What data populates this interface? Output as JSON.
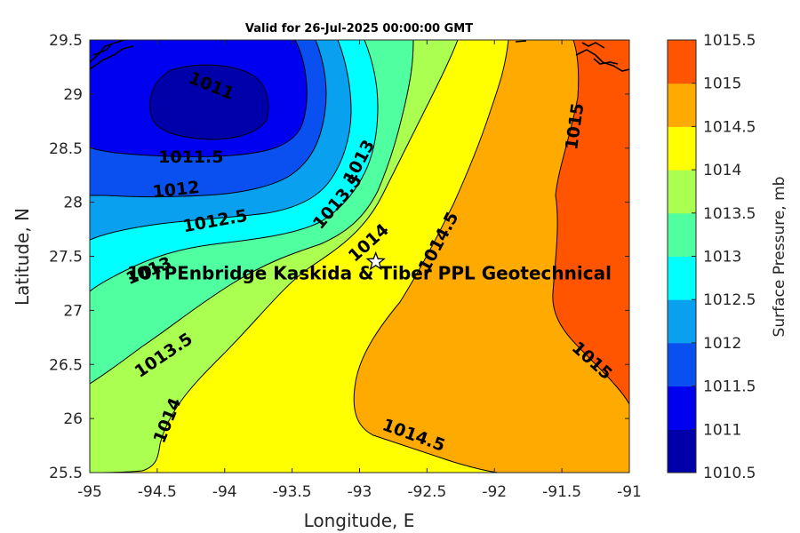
{
  "chart_data": {
    "type": "contour",
    "title": "Valid for 26-Jul-2025 00:00:00 GMT",
    "xlabel": "Longitude, E",
    "ylabel": "Latitude, N",
    "xlim": [
      -95,
      -91
    ],
    "ylim": [
      25.5,
      29.5
    ],
    "xticks": [
      "-95",
      "-94.5",
      "-94",
      "-93.5",
      "-93",
      "-92.5",
      "-92",
      "-91.5",
      "-91"
    ],
    "yticks": [
      "25.5",
      "26",
      "26.5",
      "27",
      "27.5",
      "28",
      "28.5",
      "29",
      "29.5"
    ],
    "colorbar": {
      "label": "Surface Pressure, mb",
      "levels": [
        1010.5,
        1011,
        1011.5,
        1012,
        1012.5,
        1013,
        1013.5,
        1014,
        1014.5,
        1015,
        1015.5
      ],
      "tick_labels": [
        "1010.5",
        "1011",
        "1011.5",
        "1012",
        "1012.5",
        "1013",
        "1013.5",
        "1014",
        "1014.5",
        "1015",
        "1015.5"
      ],
      "colors": [
        "#0000AA",
        "#0000F0",
        "#0A50F0",
        "#0AA0F0",
        "#00FFFF",
        "#50FFA0",
        "#AAFF50",
        "#FFFF00",
        "#FFAA00",
        "#FF5500",
        "#FF0000"
      ]
    },
    "contour_labels": [
      {
        "text": "1011",
        "lon": -94.1,
        "lat": 29.07,
        "angle": 22
      },
      {
        "text": "1011.5",
        "lon": -94.25,
        "lat": 28.41,
        "angle": 0
      },
      {
        "text": "1012",
        "lon": -94.36,
        "lat": 28.11,
        "angle": -6
      },
      {
        "text": "1012.5",
        "lon": -94.07,
        "lat": 27.82,
        "angle": -10
      },
      {
        "text": "1013",
        "lon": -94.56,
        "lat": 27.36,
        "angle": -22
      },
      {
        "text": "1013",
        "lon": -93.0,
        "lat": 28.37,
        "angle": -62
      },
      {
        "text": "1013.5",
        "lon": -93.16,
        "lat": 28.0,
        "angle": -50
      },
      {
        "text": "1013.5",
        "lon": -94.45,
        "lat": 26.58,
        "angle": -34
      },
      {
        "text": "1014",
        "lon": -92.93,
        "lat": 27.62,
        "angle": -42
      },
      {
        "text": "1014",
        "lon": -94.42,
        "lat": 25.98,
        "angle": -68
      },
      {
        "text": "1014.5",
        "lon": -92.41,
        "lat": 27.63,
        "angle": -62
      },
      {
        "text": "1014.5",
        "lon": -92.6,
        "lat": 25.84,
        "angle": 20
      },
      {
        "text": "1015",
        "lon": -91.4,
        "lat": 28.7,
        "angle": -82
      },
      {
        "text": "1015",
        "lon": -91.28,
        "lat": 26.53,
        "angle": 42
      }
    ],
    "site": {
      "label": "10TPEnbridge  Kaskida & Tiber PPL Geotechnical",
      "lon": -92.88,
      "lat": 27.45,
      "marker": "star"
    }
  }
}
